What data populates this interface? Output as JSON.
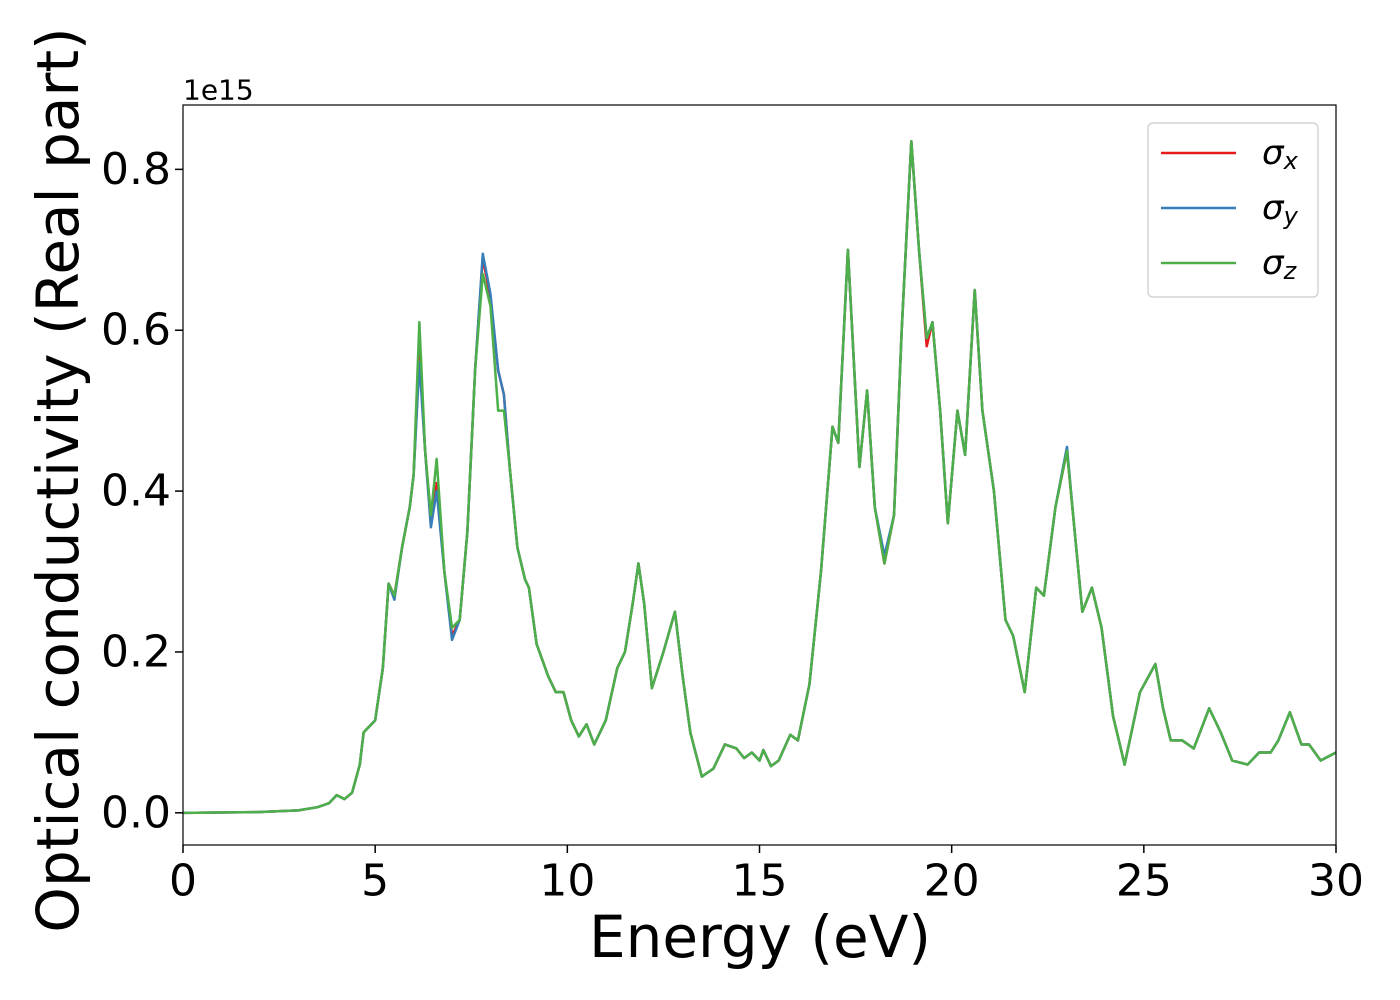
{
  "chart_data": {
    "type": "line",
    "xlabel": "Energy (eV)",
    "ylabel": "Optical conductivity (Real part)",
    "y_offset_text": "1e15",
    "x": [
      0,
      2,
      3,
      3.5,
      3.8,
      4.0,
      4.2,
      4.4,
      4.6,
      4.7,
      5.0,
      5.2,
      5.35,
      5.5,
      5.7,
      5.9,
      6.0,
      6.15,
      6.3,
      6.45,
      6.6,
      6.8,
      7.0,
      7.2,
      7.4,
      7.6,
      7.8,
      8.0,
      8.2,
      8.35,
      8.5,
      8.7,
      8.9,
      9.0,
      9.2,
      9.5,
      9.7,
      9.9,
      10.1,
      10.3,
      10.5,
      10.7,
      11.0,
      11.3,
      11.5,
      11.7,
      11.85,
      12.0,
      12.2,
      12.5,
      12.8,
      13.0,
      13.2,
      13.5,
      13.8,
      14.1,
      14.4,
      14.6,
      14.8,
      15.0,
      15.1,
      15.3,
      15.5,
      15.8,
      16.0,
      16.3,
      16.6,
      16.9,
      17.05,
      17.3,
      17.6,
      17.8,
      18.0,
      18.25,
      18.5,
      18.7,
      18.95,
      19.15,
      19.35,
      19.5,
      19.7,
      19.9,
      20.15,
      20.35,
      20.6,
      20.8,
      21.1,
      21.4,
      21.6,
      21.9,
      22.2,
      22.4,
      22.7,
      23.0,
      23.2,
      23.4,
      23.65,
      23.9,
      24.2,
      24.5,
      24.9,
      25.3,
      25.5,
      25.7,
      26.0,
      26.3,
      26.7,
      27.0,
      27.3,
      27.7,
      28.0,
      28.3,
      28.5,
      28.8,
      29.1,
      29.3,
      29.6,
      30
    ],
    "series": [
      {
        "name": "σx",
        "color": "#e41a1c",
        "values": [
          0,
          0.001,
          0.003,
          0.007,
          0.012,
          0.022,
          0.017,
          0.025,
          0.06,
          0.1,
          0.115,
          0.18,
          0.285,
          0.27,
          0.33,
          0.38,
          0.42,
          0.57,
          0.45,
          0.36,
          0.41,
          0.3,
          0.22,
          0.24,
          0.35,
          0.55,
          0.69,
          0.64,
          0.55,
          0.52,
          0.43,
          0.33,
          0.29,
          0.28,
          0.21,
          0.17,
          0.15,
          0.15,
          0.115,
          0.095,
          0.11,
          0.085,
          0.115,
          0.18,
          0.2,
          0.26,
          0.31,
          0.26,
          0.155,
          0.2,
          0.25,
          0.17,
          0.1,
          0.045,
          0.055,
          0.085,
          0.08,
          0.068,
          0.075,
          0.065,
          0.078,
          0.058,
          0.065,
          0.097,
          0.09,
          0.16,
          0.3,
          0.48,
          0.46,
          0.7,
          0.43,
          0.525,
          0.38,
          0.31,
          0.37,
          0.6,
          0.835,
          0.7,
          0.58,
          0.61,
          0.5,
          0.36,
          0.5,
          0.445,
          0.65,
          0.5,
          0.4,
          0.24,
          0.22,
          0.15,
          0.28,
          0.27,
          0.38,
          0.45,
          0.35,
          0.25,
          0.28,
          0.23,
          0.12,
          0.06,
          0.15,
          0.185,
          0.13,
          0.09,
          0.09,
          0.08,
          0.13,
          0.1,
          0.065,
          0.06,
          0.075,
          0.075,
          0.09,
          0.125,
          0.085,
          0.085,
          0.065,
          0.075
        ]
      },
      {
        "name": "σy",
        "color": "#377eb8",
        "values": [
          0,
          0.001,
          0.003,
          0.007,
          0.012,
          0.022,
          0.017,
          0.025,
          0.06,
          0.1,
          0.115,
          0.18,
          0.285,
          0.265,
          0.33,
          0.38,
          0.42,
          0.56,
          0.45,
          0.355,
          0.4,
          0.3,
          0.215,
          0.24,
          0.35,
          0.55,
          0.695,
          0.645,
          0.55,
          0.52,
          0.43,
          0.33,
          0.29,
          0.28,
          0.21,
          0.17,
          0.15,
          0.15,
          0.115,
          0.095,
          0.11,
          0.085,
          0.115,
          0.18,
          0.2,
          0.26,
          0.31,
          0.26,
          0.155,
          0.2,
          0.25,
          0.17,
          0.1,
          0.045,
          0.055,
          0.085,
          0.08,
          0.068,
          0.075,
          0.065,
          0.078,
          0.058,
          0.065,
          0.097,
          0.09,
          0.16,
          0.3,
          0.48,
          0.46,
          0.7,
          0.43,
          0.525,
          0.38,
          0.32,
          0.37,
          0.6,
          0.835,
          0.7,
          0.59,
          0.61,
          0.5,
          0.36,
          0.5,
          0.445,
          0.65,
          0.5,
          0.4,
          0.24,
          0.22,
          0.15,
          0.28,
          0.27,
          0.38,
          0.455,
          0.35,
          0.25,
          0.28,
          0.23,
          0.12,
          0.06,
          0.15,
          0.185,
          0.13,
          0.09,
          0.09,
          0.08,
          0.13,
          0.1,
          0.065,
          0.06,
          0.075,
          0.075,
          0.09,
          0.125,
          0.085,
          0.085,
          0.065,
          0.075
        ]
      },
      {
        "name": "σz",
        "color": "#4daf4a",
        "values": [
          0,
          0.001,
          0.003,
          0.007,
          0.012,
          0.022,
          0.017,
          0.025,
          0.06,
          0.1,
          0.115,
          0.18,
          0.285,
          0.27,
          0.33,
          0.38,
          0.42,
          0.61,
          0.45,
          0.37,
          0.44,
          0.3,
          0.23,
          0.24,
          0.35,
          0.55,
          0.67,
          0.63,
          0.5,
          0.5,
          0.43,
          0.33,
          0.29,
          0.28,
          0.21,
          0.17,
          0.15,
          0.15,
          0.115,
          0.095,
          0.11,
          0.085,
          0.115,
          0.18,
          0.2,
          0.26,
          0.31,
          0.26,
          0.155,
          0.2,
          0.25,
          0.17,
          0.1,
          0.045,
          0.055,
          0.085,
          0.08,
          0.068,
          0.075,
          0.065,
          0.078,
          0.058,
          0.065,
          0.097,
          0.09,
          0.16,
          0.3,
          0.48,
          0.46,
          0.7,
          0.43,
          0.525,
          0.38,
          0.31,
          0.37,
          0.6,
          0.835,
          0.7,
          0.59,
          0.61,
          0.5,
          0.36,
          0.5,
          0.445,
          0.65,
          0.5,
          0.4,
          0.24,
          0.22,
          0.15,
          0.28,
          0.27,
          0.38,
          0.45,
          0.35,
          0.25,
          0.28,
          0.23,
          0.12,
          0.06,
          0.15,
          0.185,
          0.13,
          0.09,
          0.09,
          0.08,
          0.13,
          0.1,
          0.065,
          0.06,
          0.075,
          0.075,
          0.09,
          0.125,
          0.085,
          0.085,
          0.065,
          0.075
        ]
      }
    ],
    "xlim": [
      0,
      30
    ],
    "xticks": [
      0,
      5,
      10,
      15,
      20,
      25,
      30
    ],
    "ylim": [
      -0.04,
      0.88
    ],
    "yticks": [
      {
        "value": 0,
        "label": "0.0"
      },
      0.2,
      0.4,
      0.6,
      0.8
    ],
    "grid": false,
    "legend": "upper right"
  }
}
